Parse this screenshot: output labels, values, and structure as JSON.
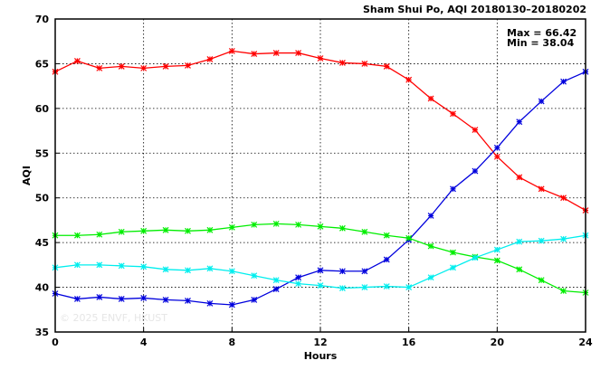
{
  "chart_data": {
    "type": "line",
    "title": "Sham Shui Po, AQI 20180130–20180202",
    "xlabel": "Hours",
    "ylabel": "AQI",
    "xlim": [
      0,
      24
    ],
    "ylim": [
      35,
      70
    ],
    "xticks": [
      0,
      4,
      8,
      12,
      16,
      20,
      24
    ],
    "yticks": [
      35,
      40,
      45,
      50,
      55,
      60,
      65,
      70
    ],
    "grid": true,
    "annotations": [
      "Max = 66.42",
      "Min = 38.04"
    ],
    "watermark": "© 2025  ENVF, HKUST",
    "x": [
      0,
      1,
      2,
      3,
      4,
      5,
      6,
      7,
      8,
      9,
      10,
      11,
      12,
      13,
      14,
      15,
      16,
      17,
      18,
      19,
      20,
      21,
      22,
      23,
      24
    ],
    "series": [
      {
        "color": "#ff0000",
        "values": [
          64.1,
          65.3,
          64.5,
          64.7,
          64.5,
          64.7,
          64.8,
          65.5,
          66.42,
          66.1,
          66.2,
          66.2,
          65.6,
          65.1,
          65.0,
          64.7,
          63.2,
          61.1,
          59.4,
          57.6,
          54.6,
          52.3,
          51.0,
          50.0,
          48.6
        ]
      },
      {
        "color": "#0000dd",
        "values": [
          39.3,
          38.7,
          38.9,
          38.7,
          38.8,
          38.6,
          38.5,
          38.2,
          38.04,
          38.6,
          39.8,
          41.1,
          41.9,
          41.8,
          41.8,
          43.1,
          45.3,
          48.0,
          51.0,
          53.0,
          55.6,
          58.5,
          60.8,
          63.0,
          64.1
        ]
      },
      {
        "color": "#00ee00",
        "values": [
          45.8,
          45.8,
          45.9,
          46.2,
          46.3,
          46.4,
          46.3,
          46.4,
          46.7,
          47.0,
          47.1,
          47.0,
          46.8,
          46.6,
          46.2,
          45.8,
          45.5,
          44.6,
          43.9,
          43.4,
          43.0,
          42.0,
          40.8,
          39.6,
          39.4
        ]
      },
      {
        "color": "#00eeee",
        "values": [
          42.2,
          42.5,
          42.5,
          42.4,
          42.3,
          42.0,
          41.9,
          42.1,
          41.8,
          41.3,
          40.8,
          40.4,
          40.2,
          39.9,
          40.0,
          40.1,
          40.0,
          41.1,
          42.2,
          43.3,
          44.2,
          45.1,
          45.2,
          45.4,
          45.8
        ]
      }
    ]
  }
}
